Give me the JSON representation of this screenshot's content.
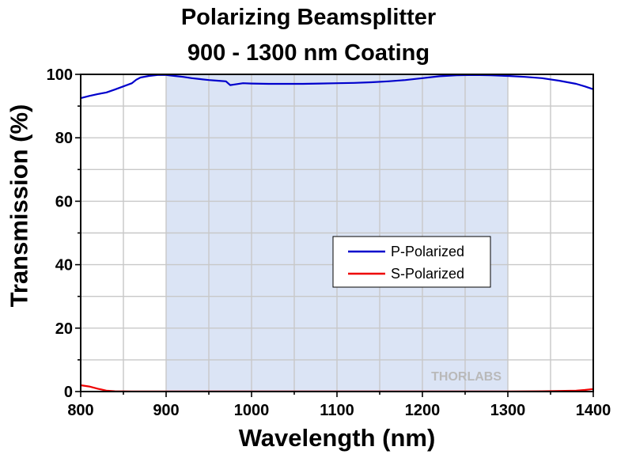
{
  "chart_data": {
    "type": "line",
    "title": "Polarizing Beamsplitter",
    "subtitle": "900 - 1300 nm Coating",
    "xlabel": "Wavelength (nm)",
    "ylabel": "Transmission (%)",
    "xlim": [
      800,
      1400
    ],
    "ylim": [
      0,
      100
    ],
    "x_ticks": [
      800,
      900,
      1000,
      1100,
      1200,
      1300,
      1400
    ],
    "y_ticks": [
      0,
      20,
      40,
      60,
      80,
      100
    ],
    "grid": true,
    "legend_position": "center-right",
    "highlight_band": [
      900,
      1300
    ],
    "watermark": "THORLABS",
    "series": [
      {
        "name": "P-Polarized",
        "color": "#0000cc",
        "x": [
          800,
          810,
          820,
          830,
          840,
          850,
          860,
          865,
          870,
          880,
          890,
          900,
          910,
          920,
          930,
          940,
          950,
          960,
          970,
          975,
          980,
          990,
          1000,
          1020,
          1040,
          1060,
          1080,
          1100,
          1120,
          1140,
          1160,
          1180,
          1200,
          1220,
          1240,
          1260,
          1280,
          1300,
          1320,
          1340,
          1360,
          1380,
          1390,
          1400
        ],
        "y": [
          92.5,
          93.2,
          93.8,
          94.3,
          95.2,
          96.2,
          97.2,
          98.3,
          99.0,
          99.5,
          99.8,
          99.8,
          99.5,
          99.2,
          98.8,
          98.5,
          98.2,
          98.0,
          97.8,
          96.6,
          96.8,
          97.2,
          97.1,
          97.0,
          97.0,
          97.0,
          97.1,
          97.2,
          97.3,
          97.5,
          97.8,
          98.2,
          98.8,
          99.4,
          99.7,
          99.8,
          99.7,
          99.5,
          99.2,
          98.8,
          98.0,
          97.0,
          96.2,
          95.3
        ]
      },
      {
        "name": "S-Polarized",
        "color": "#ee0000",
        "x": [
          800,
          810,
          820,
          830,
          840,
          860,
          900,
          1000,
          1100,
          1200,
          1300,
          1340,
          1360,
          1380,
          1390,
          1400
        ],
        "y": [
          2.0,
          1.6,
          0.9,
          0.3,
          0.1,
          0.05,
          0.02,
          0.02,
          0.02,
          0.02,
          0.05,
          0.1,
          0.2,
          0.3,
          0.5,
          0.8
        ]
      }
    ]
  }
}
